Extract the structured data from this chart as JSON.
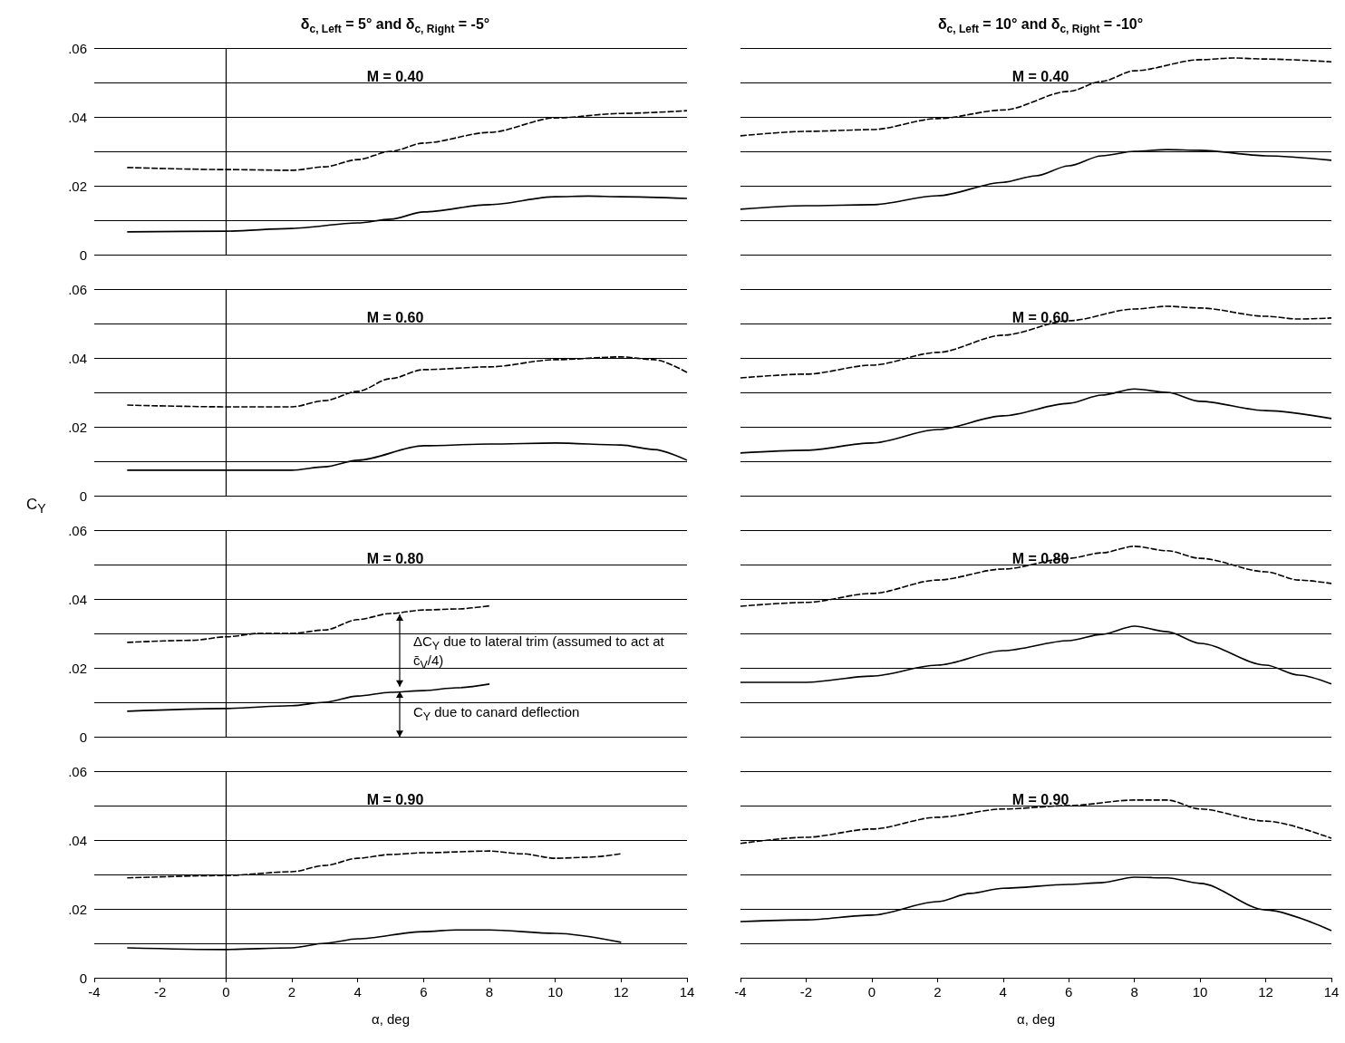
{
  "chart_data": [
    {
      "type": "line",
      "title": "δ$_{c, Left}$ = 5° and δ$_{c, Right}$ = -5°",
      "subtitle": "M = 0.40",
      "xlim": [
        -4,
        14
      ],
      "xticks": [
        -4,
        -2,
        0,
        2,
        4,
        6,
        8,
        10,
        12,
        14
      ],
      "ylim": [
        0,
        0.06
      ],
      "yticks": [
        {
          "value": 0,
          "label": "0"
        },
        {
          "value": 0.01,
          "label": null
        },
        {
          "value": 0.02,
          "label": ".02"
        },
        {
          "value": 0.03,
          "label": null
        },
        {
          "value": 0.04,
          "label": ".04"
        },
        {
          "value": 0.05,
          "label": null
        },
        {
          "value": 0.06,
          "label": ".06"
        }
      ],
      "grid": "y",
      "tick_labels": "y",
      "ref_lines": [
        {
          "axis": "x",
          "value": 0
        }
      ],
      "series": [
        {
          "color": "#000000",
          "line_style": "dashed",
          "x": [
            -3,
            0,
            2,
            3,
            4,
            5,
            6,
            8,
            10,
            12,
            14
          ],
          "values": [
            0.0253,
            0.0247,
            0.0245,
            0.0255,
            0.0276,
            0.03,
            0.0324,
            0.0355,
            0.0397,
            0.041,
            0.0418
          ]
        },
        {
          "color": "#000000",
          "line_style": "solid",
          "x": [
            -3,
            0,
            2,
            4,
            5,
            6,
            8,
            10,
            11,
            12,
            14
          ],
          "values": [
            0.0066,
            0.0068,
            0.0076,
            0.0092,
            0.0103,
            0.0124,
            0.0145,
            0.0168,
            0.017,
            0.0168,
            0.0163
          ]
        }
      ]
    },
    {
      "type": "line",
      "title": "δ$_{c, Left}$ = 10° and δ$_{c, Right}$ = -10°",
      "subtitle": "M = 0.40",
      "xlim": [
        -4,
        14
      ],
      "xticks": [
        -4,
        -2,
        0,
        2,
        4,
        6,
        8,
        10,
        12,
        14
      ],
      "ylim": [
        0,
        0.06
      ],
      "yticks": [
        {
          "value": 0,
          "label": null
        },
        {
          "value": 0.01,
          "label": null
        },
        {
          "value": 0.02,
          "label": null
        },
        {
          "value": 0.03,
          "label": null
        },
        {
          "value": 0.04,
          "label": null
        },
        {
          "value": 0.05,
          "label": null
        },
        {
          "value": 0.06,
          "label": null
        }
      ],
      "grid": "y",
      "tick_labels": false,
      "series": [
        {
          "color": "#000000",
          "line_style": "dashed",
          "x": [
            -4,
            -2,
            0,
            2,
            4,
            6,
            7,
            8,
            10,
            11,
            12,
            14
          ],
          "values": [
            0.0345,
            0.0358,
            0.0363,
            0.0395,
            0.042,
            0.0474,
            0.0503,
            0.0534,
            0.0566,
            0.0571,
            0.0568,
            0.056
          ]
        },
        {
          "color": "#000000",
          "line_style": "solid",
          "x": [
            -4,
            -2,
            0,
            2,
            4,
            5,
            6,
            7,
            8,
            9,
            10,
            12,
            14
          ],
          "values": [
            0.0132,
            0.0142,
            0.0145,
            0.0171,
            0.021,
            0.0229,
            0.0258,
            0.0287,
            0.03,
            0.0305,
            0.0303,
            0.0287,
            0.0274
          ]
        }
      ]
    },
    {
      "type": "line",
      "subtitle": "M = 0.60",
      "ylabel": "C$_{Y}$",
      "xlim": [
        -4,
        14
      ],
      "xticks": [
        -4,
        -2,
        0,
        2,
        4,
        6,
        8,
        10,
        12,
        14
      ],
      "ylim": [
        0,
        0.06
      ],
      "yticks": [
        {
          "value": 0,
          "label": "0"
        },
        {
          "value": 0.01,
          "label": null
        },
        {
          "value": 0.02,
          "label": ".02"
        },
        {
          "value": 0.03,
          "label": null
        },
        {
          "value": 0.04,
          "label": ".04"
        },
        {
          "value": 0.05,
          "label": null
        },
        {
          "value": 0.06,
          "label": ".06"
        }
      ],
      "grid": "y",
      "tick_labels": "y",
      "ref_lines": [
        {
          "axis": "x",
          "value": 0
        }
      ],
      "series": [
        {
          "color": "#000000",
          "line_style": "dashed",
          "x": [
            -3,
            0,
            2,
            3,
            4,
            5,
            6,
            8,
            10,
            12,
            13,
            14
          ],
          "values": [
            0.0263,
            0.0258,
            0.0258,
            0.0276,
            0.0303,
            0.034,
            0.0366,
            0.0374,
            0.0395,
            0.0403,
            0.0395,
            0.0358
          ]
        },
        {
          "color": "#000000",
          "line_style": "solid",
          "x": [
            -3,
            0,
            2,
            3,
            4,
            6,
            8,
            10,
            12,
            13,
            14
          ],
          "values": [
            0.0074,
            0.0074,
            0.0074,
            0.0084,
            0.0103,
            0.0145,
            0.015,
            0.0153,
            0.0147,
            0.0134,
            0.0103
          ]
        }
      ]
    },
    {
      "type": "line",
      "subtitle": "M = 0.60",
      "xlim": [
        -4,
        14
      ],
      "xticks": [
        -4,
        -2,
        0,
        2,
        4,
        6,
        8,
        10,
        12,
        14
      ],
      "ylim": [
        0,
        0.06
      ],
      "yticks": [
        {
          "value": 0,
          "label": null
        },
        {
          "value": 0.01,
          "label": null
        },
        {
          "value": 0.02,
          "label": null
        },
        {
          "value": 0.03,
          "label": null
        },
        {
          "value": 0.04,
          "label": null
        },
        {
          "value": 0.05,
          "label": null
        },
        {
          "value": 0.06,
          "label": null
        }
      ],
      "grid": "y",
      "tick_labels": false,
      "series": [
        {
          "color": "#000000",
          "line_style": "dashed",
          "x": [
            -4,
            -2,
            0,
            2,
            4,
            6,
            8,
            9,
            10,
            12,
            13,
            14
          ],
          "values": [
            0.0342,
            0.0353,
            0.0379,
            0.0416,
            0.0466,
            0.0508,
            0.0542,
            0.055,
            0.0545,
            0.0521,
            0.0513,
            0.0516
          ]
        },
        {
          "color": "#000000",
          "line_style": "solid",
          "x": [
            -4,
            -2,
            0,
            2,
            4,
            6,
            7,
            8,
            9,
            10,
            12,
            14
          ],
          "values": [
            0.0124,
            0.0132,
            0.0153,
            0.0192,
            0.0232,
            0.0268,
            0.0292,
            0.031,
            0.03,
            0.0274,
            0.0247,
            0.0224
          ]
        }
      ]
    },
    {
      "type": "line",
      "subtitle": "M = 0.80",
      "xlim": [
        -4,
        14
      ],
      "xticks": [
        -4,
        -2,
        0,
        2,
        4,
        6,
        8,
        10,
        12,
        14
      ],
      "ylim": [
        0,
        0.06
      ],
      "yticks": [
        {
          "value": 0,
          "label": "0"
        },
        {
          "value": 0.01,
          "label": null
        },
        {
          "value": 0.02,
          "label": ".02"
        },
        {
          "value": 0.03,
          "label": null
        },
        {
          "value": 0.04,
          "label": ".04"
        },
        {
          "value": 0.05,
          "label": null
        },
        {
          "value": 0.06,
          "label": ".06"
        }
      ],
      "grid": "y",
      "tick_labels": "y",
      "ref_lines": [
        {
          "axis": "x",
          "value": 0
        }
      ],
      "annotations": [
        "ΔC$_{Y}$ due to lateral trim (assumed to act at c̄$_{V}$/4)",
        "C$_{Y}$ due to canard deflection"
      ],
      "series": [
        {
          "color": "#000000",
          "line_style": "dashed",
          "x": [
            -3,
            -1,
            0,
            1,
            2,
            3,
            4,
            5,
            6,
            7,
            8
          ],
          "values": [
            0.0274,
            0.028,
            0.029,
            0.03,
            0.03,
            0.031,
            0.034,
            0.0358,
            0.0368,
            0.0371,
            0.038
          ]
        },
        {
          "color": "#000000",
          "line_style": "solid",
          "x": [
            -3,
            0,
            2,
            3,
            4,
            5,
            6,
            7,
            8
          ],
          "values": [
            0.0074,
            0.0082,
            0.009,
            0.01,
            0.0118,
            0.0129,
            0.0134,
            0.0142,
            0.0153
          ]
        }
      ]
    },
    {
      "type": "line",
      "subtitle": "M = 0.80",
      "xlim": [
        -4,
        14
      ],
      "xticks": [
        -4,
        -2,
        0,
        2,
        4,
        6,
        8,
        10,
        12,
        14
      ],
      "ylim": [
        0,
        0.06
      ],
      "yticks": [
        {
          "value": 0,
          "label": null
        },
        {
          "value": 0.01,
          "label": null
        },
        {
          "value": 0.02,
          "label": null
        },
        {
          "value": 0.03,
          "label": null
        },
        {
          "value": 0.04,
          "label": null
        },
        {
          "value": 0.05,
          "label": null
        },
        {
          "value": 0.06,
          "label": null
        }
      ],
      "grid": "y",
      "tick_labels": false,
      "series": [
        {
          "color": "#000000",
          "line_style": "dashed",
          "x": [
            -4,
            -2,
            0,
            2,
            4,
            6,
            7,
            8,
            9,
            10,
            12,
            13,
            14
          ],
          "values": [
            0.0379,
            0.039,
            0.0416,
            0.0455,
            0.0487,
            0.0518,
            0.0534,
            0.0553,
            0.054,
            0.0518,
            0.0479,
            0.0455,
            0.0445
          ]
        },
        {
          "color": "#000000",
          "line_style": "solid",
          "x": [
            -4,
            -2,
            0,
            2,
            4,
            6,
            7,
            8,
            9,
            10,
            12,
            13,
            14
          ],
          "values": [
            0.0158,
            0.0158,
            0.0176,
            0.0208,
            0.025,
            0.0279,
            0.0297,
            0.0321,
            0.0305,
            0.0271,
            0.0208,
            0.0179,
            0.0153
          ]
        }
      ]
    },
    {
      "type": "line",
      "subtitle": "M = 0.90",
      "xlabel": "α, deg",
      "xlim": [
        -4,
        14
      ],
      "xticks": [
        -4,
        -2,
        0,
        2,
        4,
        6,
        8,
        10,
        12,
        14
      ],
      "ylim": [
        0,
        0.06
      ],
      "yticks": [
        {
          "value": 0,
          "label": "0"
        },
        {
          "value": 0.01,
          "label": null
        },
        {
          "value": 0.02,
          "label": ".02"
        },
        {
          "value": 0.03,
          "label": null
        },
        {
          "value": 0.04,
          "label": ".04"
        },
        {
          "value": 0.05,
          "label": null
        },
        {
          "value": 0.06,
          "label": ".06"
        }
      ],
      "grid": "y",
      "ref_lines": [
        {
          "axis": "x",
          "value": 0
        }
      ],
      "series": [
        {
          "color": "#000000",
          "line_style": "dashed",
          "x": [
            -3,
            0,
            2,
            3,
            4,
            5,
            6,
            8,
            9,
            10,
            11,
            12
          ],
          "values": [
            0.029,
            0.0297,
            0.0308,
            0.0326,
            0.0347,
            0.0358,
            0.0363,
            0.0368,
            0.036,
            0.0347,
            0.035,
            0.036
          ]
        },
        {
          "color": "#000000",
          "line_style": "solid",
          "x": [
            -3,
            0,
            2,
            3,
            4,
            6,
            7,
            8,
            10,
            12
          ],
          "values": [
            0.0087,
            0.0082,
            0.0087,
            0.01,
            0.0113,
            0.0134,
            0.0139,
            0.0139,
            0.0129,
            0.0103
          ]
        }
      ]
    },
    {
      "type": "line",
      "subtitle": "M = 0.90",
      "xlabel": "α, deg",
      "xlim": [
        -4,
        14
      ],
      "xticks": [
        -4,
        -2,
        0,
        2,
        4,
        6,
        8,
        10,
        12,
        14
      ],
      "ylim": [
        0,
        0.06
      ],
      "yticks": [
        {
          "value": 0,
          "label": null
        },
        {
          "value": 0.01,
          "label": null
        },
        {
          "value": 0.02,
          "label": null
        },
        {
          "value": 0.03,
          "label": null
        },
        {
          "value": 0.04,
          "label": null
        },
        {
          "value": 0.05,
          "label": null
        },
        {
          "value": 0.06,
          "label": null
        }
      ],
      "grid": "y",
      "tick_labels": "x",
      "series": [
        {
          "color": "#000000",
          "line_style": "dashed",
          "x": [
            -4,
            -2,
            0,
            2,
            4,
            6,
            8,
            9,
            10,
            12,
            14
          ],
          "values": [
            0.039,
            0.0408,
            0.0432,
            0.0466,
            0.049,
            0.05,
            0.0516,
            0.0516,
            0.049,
            0.0455,
            0.0405
          ]
        },
        {
          "color": "#000000",
          "line_style": "solid",
          "x": [
            -4,
            -2,
            0,
            2,
            3,
            4,
            6,
            7,
            8,
            9,
            10,
            12,
            14
          ],
          "values": [
            0.0163,
            0.0168,
            0.0182,
            0.0221,
            0.0245,
            0.026,
            0.0271,
            0.0276,
            0.0292,
            0.029,
            0.0274,
            0.0197,
            0.0137
          ]
        }
      ]
    }
  ]
}
